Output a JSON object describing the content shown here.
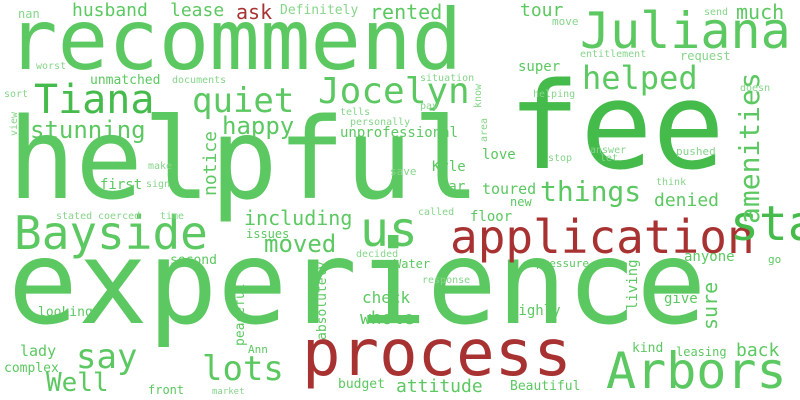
{
  "colors": {
    "positive": "#5cc861",
    "negative": "#a83232",
    "background": "#ffffff"
  },
  "words": {
    "recommend": "recommend",
    "helpful": "helpful",
    "fee": "fee",
    "experience": "experience",
    "process": "process",
    "application": "application",
    "arbors": "Arbors",
    "bayside": "Bayside",
    "juliana": "Juliana",
    "staff": "staff",
    "jocelyn": "Jocelyn",
    "tiana": "Tiana",
    "us": "us",
    "helped": "helped",
    "quiet": "quiet",
    "happy": "happy",
    "stunning": "stunning",
    "things": "things",
    "say": "say",
    "lots": "lots",
    "well": "Well",
    "moved": "moved",
    "including": "including",
    "amenities": "amenities",
    "husband": "husband",
    "lease": "lease",
    "ask": "ask",
    "definitely": "Definitely",
    "rented": "rented",
    "tour": "tour",
    "much": "much",
    "nan": "nan",
    "worst": "worst",
    "sort": "sort",
    "unmatched": "unmatched",
    "documents": "documents",
    "situation": "situation",
    "super": "super",
    "move": "move",
    "entitlement": "entitlement",
    "request": "request",
    "send": "send",
    "know": "know",
    "pay": "pay",
    "tells": "tells",
    "personally": "personally",
    "unprofessional": "unprofessional",
    "notice": "notice",
    "helping": "helping",
    "doesn": "doesn",
    "area": "area",
    "answer": "answer",
    "let": "let",
    "stop": "stop",
    "love": "love",
    "pushed": "pushed",
    "think": "think",
    "view": "view",
    "make": "make",
    "sign": "sign",
    "first": "first",
    "save": "save",
    "kyle": "Kyle",
    "far": "far",
    "toured": "toured",
    "denied": "denied",
    "stated": "stated",
    "coerced": "coerced",
    "time": "time",
    "called": "called",
    "floor": "floor",
    "new": "new",
    "issues": "issues",
    "decided": "decided",
    "water": "Water",
    "second": "second",
    "peaceful": "peaceful",
    "absolutely": "absolutely",
    "check": "check",
    "whole": "whole",
    "looking": "looking",
    "complex": "complex",
    "lady": "lady",
    "ann": "Ann",
    "front": "front",
    "market": "market",
    "budget": "budget",
    "attitude": "attitude",
    "beautiful": "Beautiful",
    "living": "living",
    "anyone": "anyone",
    "pressure": "pressure",
    "go": "go",
    "response": "response",
    "highly": "highly",
    "give": "give",
    "sure": "sure",
    "kind": "kind",
    "leasing": "leasing",
    "back": "back"
  }
}
